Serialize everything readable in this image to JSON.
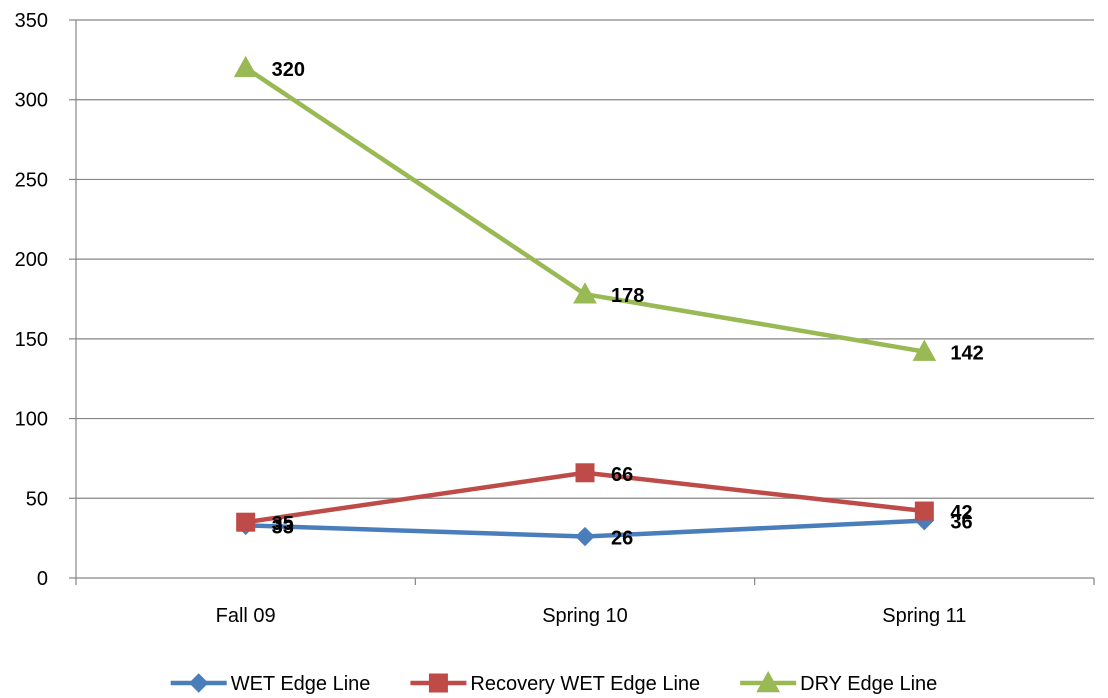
{
  "chart_data": {
    "type": "line",
    "categories": [
      "Fall 09",
      "Spring 10",
      "Spring 11"
    ],
    "series": [
      {
        "name": "WET Edge Line",
        "values": [
          33,
          26,
          36
        ],
        "color": "#4a7ebb",
        "marker": "diamond"
      },
      {
        "name": "Recovery WET Edge Line",
        "values": [
          35,
          66,
          42
        ],
        "color": "#be4b48",
        "marker": "square"
      },
      {
        "name": "DRY Edge Line",
        "values": [
          320,
          178,
          142
        ],
        "color": "#98b954",
        "marker": "triangle"
      }
    ],
    "ylim": [
      0,
      350
    ],
    "yticks": [
      "0",
      "50",
      "100",
      "150",
      "200",
      "250",
      "300",
      "350"
    ],
    "grid": true,
    "gridline_color": "#868686",
    "legend_position": "bottom"
  }
}
